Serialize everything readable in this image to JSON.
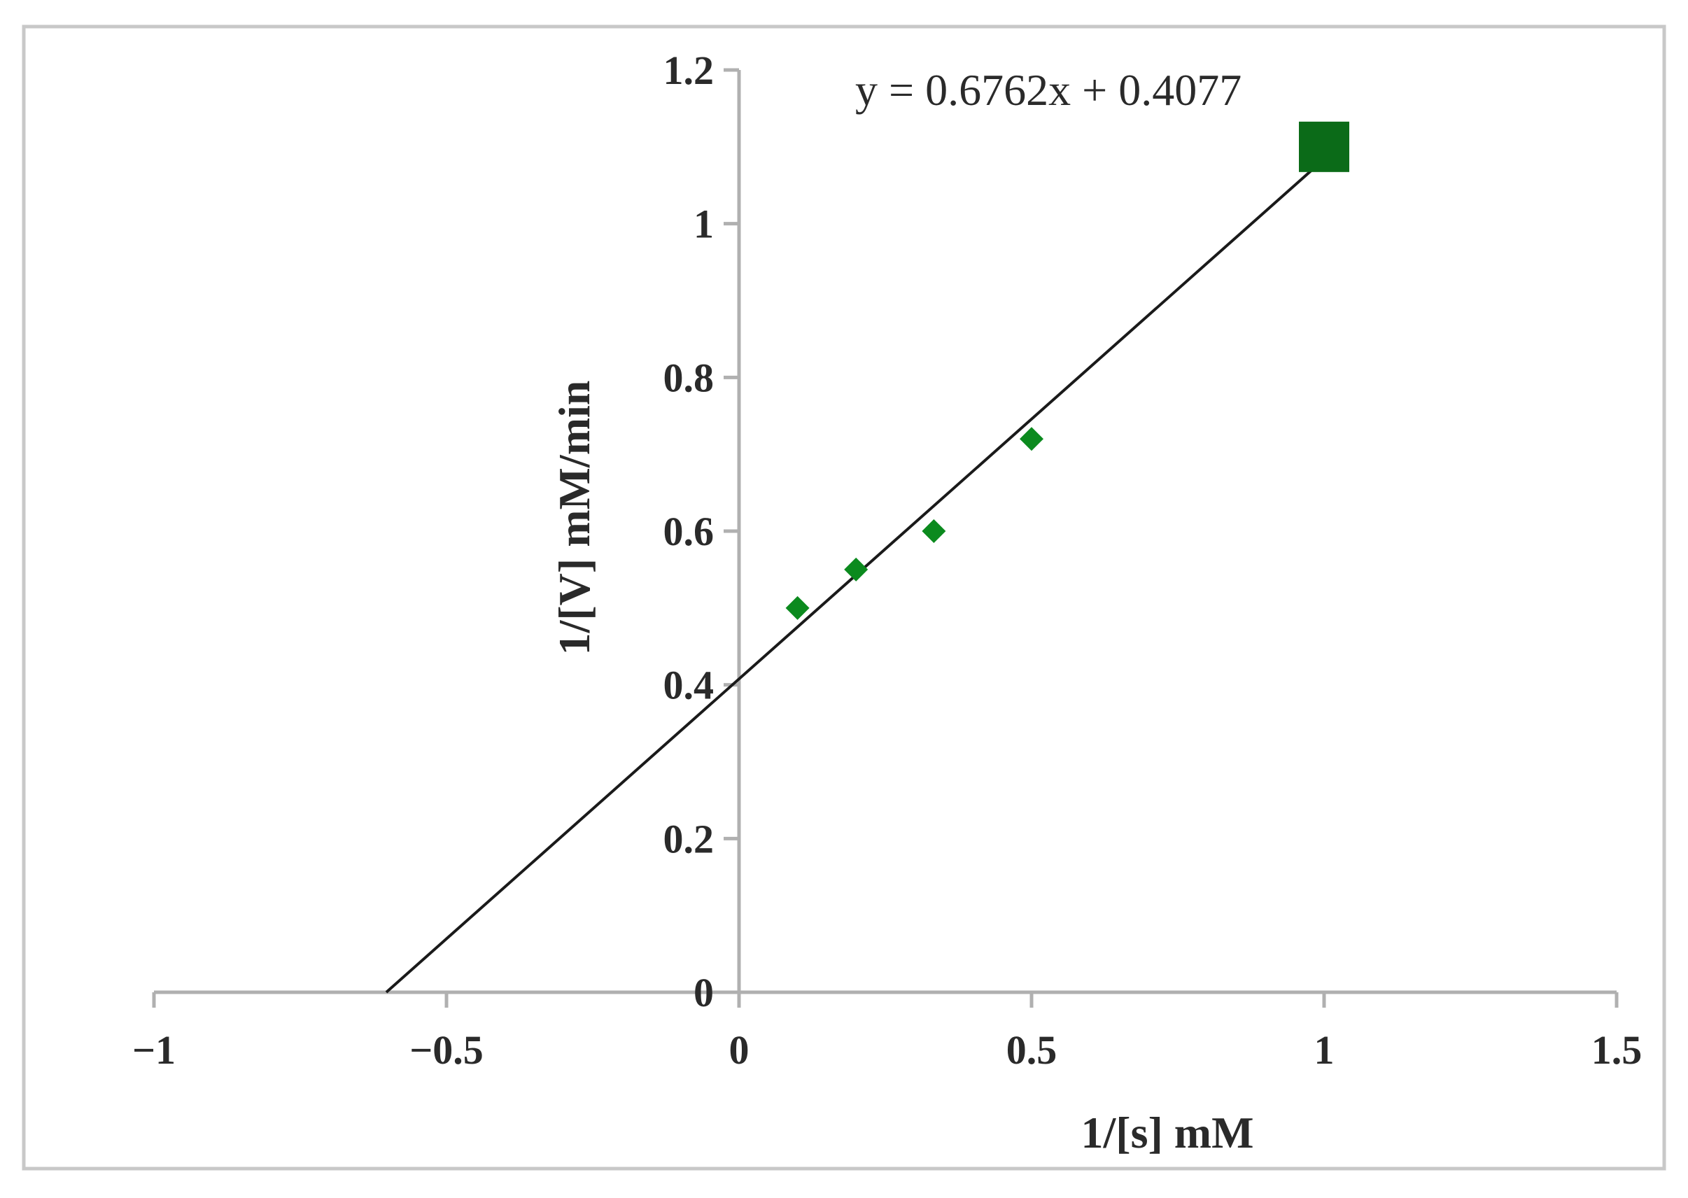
{
  "chart_data": {
    "type": "scatter",
    "xlabel": "1/[s] mM",
    "ylabel": "1/[V] mM/min",
    "xlim": [
      -1,
      1.5
    ],
    "ylim": [
      0,
      1.2
    ],
    "x_ticks": [
      "−1",
      "−0.5",
      "0",
      "0.5",
      "1",
      "1.5"
    ],
    "x_tick_values": [
      -1,
      -0.5,
      0,
      0.5,
      1,
      1.5
    ],
    "y_ticks": [
      "0",
      "0.2",
      "0.4",
      "0.6",
      "0.8",
      "1",
      "1.2"
    ],
    "y_tick_values": [
      0,
      0.2,
      0.4,
      0.6,
      0.8,
      1,
      1.2
    ],
    "series": [
      {
        "marker": "diamond",
        "color": "#0b8a1e",
        "points": [
          {
            "x": 0.1,
            "y": 0.5
          },
          {
            "x": 0.2,
            "y": 0.55
          },
          {
            "x": 0.333,
            "y": 0.6
          },
          {
            "x": 0.5,
            "y": 0.72
          }
        ]
      },
      {
        "marker": "square",
        "color": "#0b6b18",
        "points": [
          {
            "x": 1.0,
            "y": 1.1
          }
        ]
      }
    ],
    "trendline": {
      "slope": 0.6762,
      "intercept": 0.4077,
      "x_range": [
        -0.6029,
        1.0
      ],
      "color": "#1a1a1a",
      "equation": "y = 0.6762x + 0.4077"
    },
    "grid": false,
    "frame_color": "#c8c8c8",
    "axis_color": "#b0b0b0"
  }
}
